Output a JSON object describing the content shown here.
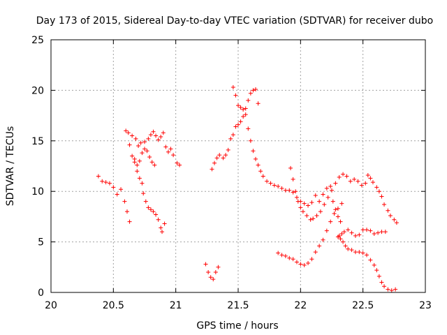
{
  "chart_data": {
    "type": "scatter",
    "title": "Day 173 of 2015, Sidereal Day-to-day VTEC variation (SDTVAR) for receiver dubo",
    "xlabel": "GPS time / hours",
    "ylabel": "SDTVAR / TECUs",
    "xlim": [
      20,
      23
    ],
    "ylim": [
      0,
      25
    ],
    "xticks": [
      20,
      20.5,
      21,
      21.5,
      22,
      22.5,
      23
    ],
    "xtick_labels": [
      "20",
      "20.5",
      "21",
      "21.5",
      "22",
      "22.5",
      "23"
    ],
    "yticks": [
      0,
      5,
      10,
      15,
      20,
      25
    ],
    "ytick_labels": [
      "0",
      "5",
      "10",
      "15",
      "20",
      "25"
    ],
    "grid": true,
    "marker": "+",
    "color": "#ff0000",
    "series": [
      {
        "name": "sdtvar",
        "segments": [
          [
            [
              20.38,
              11.5
            ],
            [
              20.41,
              11.0
            ],
            [
              20.44,
              10.9
            ],
            [
              20.47,
              10.8
            ],
            [
              20.5,
              10.4
            ],
            [
              20.53,
              9.7
            ],
            [
              20.56,
              10.2
            ],
            [
              20.59,
              9.0
            ],
            [
              20.61,
              8.0
            ],
            [
              20.63,
              7.0
            ]
          ],
          [
            [
              20.6,
              16.0
            ],
            [
              20.62,
              15.8
            ],
            [
              20.65,
              15.5
            ],
            [
              20.68,
              15.2
            ],
            [
              20.7,
              14.5
            ],
            [
              20.72,
              14.8
            ],
            [
              20.75,
              14.9
            ],
            [
              20.78,
              15.2
            ],
            [
              20.8,
              15.6
            ],
            [
              20.82,
              15.9
            ],
            [
              20.84,
              15.5
            ],
            [
              20.86,
              15.1
            ],
            [
              20.88,
              15.4
            ],
            [
              20.9,
              15.8
            ],
            [
              20.92,
              14.4
            ],
            [
              20.94,
              13.9
            ],
            [
              20.96,
              14.2
            ],
            [
              20.98,
              13.6
            ],
            [
              21.01,
              12.8
            ],
            [
              21.03,
              12.6
            ]
          ],
          [
            [
              20.63,
              14.6
            ],
            [
              20.65,
              13.5
            ],
            [
              20.67,
              12.9
            ],
            [
              20.69,
              12.6
            ],
            [
              20.71,
              13.0
            ],
            [
              20.73,
              13.8
            ],
            [
              20.75,
              14.2
            ],
            [
              20.77,
              14.0
            ],
            [
              20.79,
              13.4
            ],
            [
              20.81,
              12.9
            ],
            [
              20.83,
              12.6
            ]
          ],
          [
            [
              20.67,
              13.2
            ],
            [
              20.69,
              12.0
            ],
            [
              20.71,
              11.3
            ],
            [
              20.73,
              10.8
            ],
            [
              20.74,
              9.8
            ],
            [
              20.76,
              9.0
            ],
            [
              20.78,
              8.4
            ],
            [
              20.8,
              8.2
            ],
            [
              20.82,
              8.0
            ],
            [
              20.84,
              7.7
            ],
            [
              20.86,
              7.2
            ],
            [
              20.88,
              6.4
            ],
            [
              20.89,
              6.0
            ],
            [
              20.91,
              6.8
            ]
          ],
          [
            [
              21.24,
              2.8
            ],
            [
              21.26,
              2.0
            ],
            [
              21.28,
              1.5
            ],
            [
              21.3,
              1.3
            ],
            [
              21.32,
              2.0
            ],
            [
              21.34,
              2.5
            ]
          ],
          [
            [
              21.29,
              12.2
            ],
            [
              21.31,
              12.8
            ],
            [
              21.33,
              13.3
            ],
            [
              21.35,
              13.6
            ],
            [
              21.38,
              13.3
            ],
            [
              21.4,
              13.6
            ],
            [
              21.42,
              14.1
            ],
            [
              21.44,
              15.2
            ],
            [
              21.46,
              15.6
            ],
            [
              21.48,
              16.4
            ],
            [
              21.5,
              16.6
            ],
            [
              21.52,
              16.9
            ],
            [
              21.54,
              17.4
            ],
            [
              21.56,
              18.2
            ],
            [
              21.58,
              19.0
            ],
            [
              21.6,
              19.7
            ],
            [
              21.62,
              20.0
            ],
            [
              21.64,
              20.1
            ],
            [
              21.66,
              18.7
            ]
          ],
          [
            [
              21.46,
              20.3
            ],
            [
              21.48,
              19.5
            ],
            [
              21.5,
              18.5
            ],
            [
              21.52,
              18.3
            ],
            [
              21.54,
              18.1
            ],
            [
              21.56,
              17.6
            ],
            [
              21.58,
              16.2
            ],
            [
              21.6,
              15.0
            ],
            [
              21.62,
              14.0
            ],
            [
              21.64,
              13.2
            ],
            [
              21.66,
              12.6
            ],
            [
              21.68,
              12.0
            ],
            [
              21.7,
              11.5
            ],
            [
              21.73,
              11.0
            ],
            [
              21.76,
              10.8
            ],
            [
              21.79,
              10.6
            ],
            [
              21.82,
              10.5
            ],
            [
              21.85,
              10.3
            ],
            [
              21.88,
              10.1
            ],
            [
              21.91,
              10.1
            ],
            [
              21.94,
              9.9
            ],
            [
              21.97,
              9.4
            ],
            [
              22.0,
              9.0
            ],
            [
              22.03,
              8.8
            ],
            [
              22.06,
              8.6
            ],
            [
              22.09,
              8.9
            ],
            [
              22.12,
              9.6
            ],
            [
              22.15,
              9.0
            ],
            [
              22.18,
              9.7
            ],
            [
              22.21,
              10.3
            ],
            [
              22.24,
              10.5
            ],
            [
              22.26,
              9.0
            ],
            [
              22.28,
              8.2
            ],
            [
              22.3,
              7.5
            ],
            [
              22.32,
              7.0
            ]
          ],
          [
            [
              21.92,
              12.3
            ],
            [
              21.94,
              11.2
            ],
            [
              21.96,
              10.0
            ],
            [
              21.98,
              9.0
            ],
            [
              22.0,
              8.4
            ],
            [
              22.02,
              8.0
            ],
            [
              22.05,
              7.6
            ],
            [
              22.08,
              7.2
            ],
            [
              22.1,
              7.3
            ],
            [
              22.13,
              7.6
            ],
            [
              22.16,
              8.0
            ],
            [
              22.19,
              8.7
            ],
            [
              22.22,
              9.4
            ],
            [
              22.25,
              10.1
            ],
            [
              22.28,
              10.8
            ],
            [
              22.31,
              11.4
            ],
            [
              22.34,
              11.7
            ],
            [
              22.37,
              11.5
            ],
            [
              22.4,
              11.0
            ],
            [
              22.43,
              11.2
            ],
            [
              22.46,
              11.0
            ],
            [
              22.49,
              10.6
            ],
            [
              22.52,
              10.8
            ],
            [
              22.54,
              11.6
            ],
            [
              22.56,
              11.3
            ],
            [
              22.58,
              10.9
            ],
            [
              22.61,
              10.4
            ],
            [
              22.63,
              10.0
            ],
            [
              22.65,
              9.5
            ],
            [
              22.67,
              8.7
            ],
            [
              22.7,
              8.1
            ],
            [
              22.72,
              7.6
            ],
            [
              22.75,
              7.2
            ],
            [
              22.77,
              6.9
            ]
          ],
          [
            [
              21.82,
              3.9
            ],
            [
              21.85,
              3.7
            ],
            [
              21.88,
              3.6
            ],
            [
              21.91,
              3.4
            ],
            [
              21.94,
              3.3
            ],
            [
              21.97,
              3.0
            ],
            [
              22.0,
              2.8
            ],
            [
              22.03,
              2.7
            ],
            [
              22.06,
              2.9
            ],
            [
              22.09,
              3.3
            ],
            [
              22.12,
              4.0
            ],
            [
              22.15,
              4.6
            ],
            [
              22.18,
              5.2
            ],
            [
              22.21,
              6.1
            ],
            [
              22.24,
              7.0
            ],
            [
              22.27,
              7.8
            ],
            [
              22.3,
              8.3
            ],
            [
              22.33,
              8.8
            ]
          ],
          [
            [
              22.3,
              5.5
            ],
            [
              22.32,
              5.3
            ],
            [
              22.34,
              5.0
            ],
            [
              22.36,
              4.6
            ],
            [
              22.38,
              4.3
            ],
            [
              22.41,
              4.2
            ],
            [
              22.44,
              4.0
            ],
            [
              22.47,
              4.0
            ],
            [
              22.5,
              3.9
            ],
            [
              22.53,
              3.7
            ],
            [
              22.56,
              3.2
            ],
            [
              22.59,
              2.7
            ],
            [
              22.61,
              2.2
            ],
            [
              22.63,
              1.6
            ],
            [
              22.65,
              1.0
            ],
            [
              22.67,
              0.6
            ],
            [
              22.7,
              0.3
            ],
            [
              22.73,
              0.2
            ],
            [
              22.76,
              0.3
            ]
          ],
          [
            [
              22.31,
              5.6
            ],
            [
              22.33,
              5.8
            ],
            [
              22.35,
              6.0
            ],
            [
              22.38,
              6.2
            ],
            [
              22.41,
              5.9
            ],
            [
              22.44,
              5.6
            ],
            [
              22.47,
              5.7
            ],
            [
              22.5,
              6.2
            ],
            [
              22.53,
              6.2
            ],
            [
              22.56,
              6.1
            ],
            [
              22.59,
              5.8
            ],
            [
              22.62,
              5.9
            ],
            [
              22.65,
              6.0
            ],
            [
              22.68,
              6.0
            ]
          ]
        ]
      }
    ]
  }
}
